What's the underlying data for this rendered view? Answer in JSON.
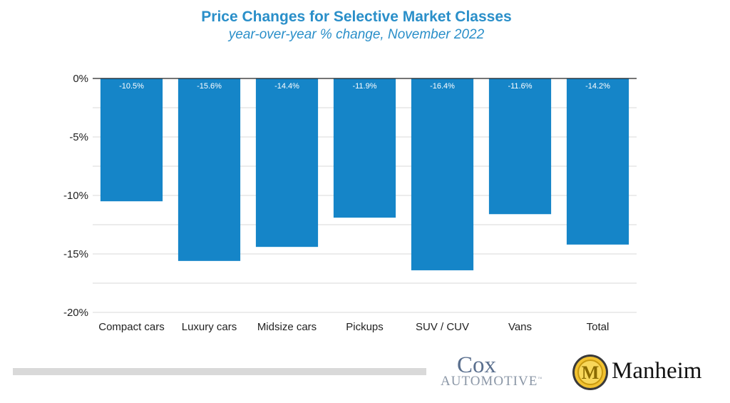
{
  "chart_data": {
    "type": "bar",
    "title": "Price Changes for Selective Market Classes",
    "subtitle": "year-over-year % change, November 2022",
    "categories": [
      "Compact cars",
      "Luxury cars",
      "Midsize cars",
      "Pickups",
      "SUV / CUV",
      "Vans",
      "Total"
    ],
    "values": [
      -10.5,
      -15.6,
      -14.4,
      -11.9,
      -16.4,
      -11.6,
      -14.2
    ],
    "data_labels": [
      "-10.5%",
      "-15.6%",
      "-14.4%",
      "-11.9%",
      "-16.4%",
      "-11.6%",
      "-14.2%"
    ],
    "y_ticks": [
      0,
      -5,
      -10,
      -15,
      -20
    ],
    "y_tick_labels": [
      "0%",
      "-5%",
      "-10%",
      "-15%",
      "-20%"
    ],
    "ylim": [
      -20,
      0
    ],
    "grid": true,
    "bar_color": "#1585c8",
    "title_color": "#2a8fc9"
  },
  "logos": {
    "cox_top": "Cox",
    "cox_bottom": "AUTOMOTIVE",
    "cox_tm": "™",
    "manheim": "Manheim",
    "manheim_badge_letter": "M"
  }
}
